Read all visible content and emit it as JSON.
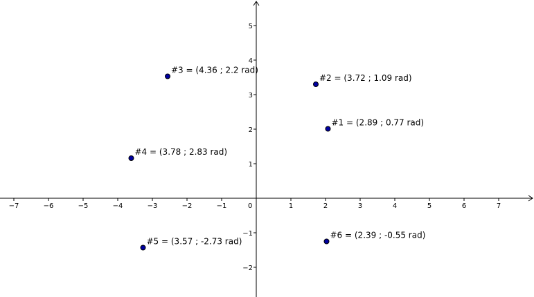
{
  "chart_data": {
    "type": "scatter",
    "title": "",
    "xlabel": "",
    "ylabel": "",
    "xlim": [
      -7.4,
      8.0
    ],
    "ylim": [
      -2.8,
      5.7
    ],
    "grid": false,
    "origin_label": "0",
    "x_ticks": [
      -7,
      -6,
      -5,
      -4,
      -3,
      -2,
      -1,
      1,
      2,
      3,
      4,
      5,
      6,
      7
    ],
    "y_ticks": [
      -2,
      -1,
      1,
      2,
      3,
      4,
      5
    ],
    "x_tick_labels": [
      "−7",
      "−6",
      "−5",
      "−4",
      "−3",
      "−2",
      "−1",
      "1",
      "2",
      "3",
      "4",
      "5",
      "6",
      "7"
    ],
    "y_tick_labels": [
      "−2",
      "−1",
      "1",
      "2",
      "3",
      "4",
      "5"
    ],
    "point_color": "#0000a0",
    "points": [
      {
        "x": 2.07,
        "y": 2.01,
        "label": "#1 = (2.89 ; 0.77 rad)"
      },
      {
        "x": 1.72,
        "y": 3.3,
        "label": "#2 = (3.72 ; 1.09 rad)"
      },
      {
        "x": -2.56,
        "y": 3.53,
        "label": "#3 = (4.36 ; 2.2 rad)"
      },
      {
        "x": -3.61,
        "y": 1.16,
        "label": "#4 = (3.78 ; 2.83 rad)"
      },
      {
        "x": -3.27,
        "y": -1.43,
        "label": "#5 = (3.57 ; -2.73 rad)"
      },
      {
        "x": 2.03,
        "y": -1.25,
        "label": "#6 = (2.39 ; -0.55 rad)"
      }
    ]
  }
}
